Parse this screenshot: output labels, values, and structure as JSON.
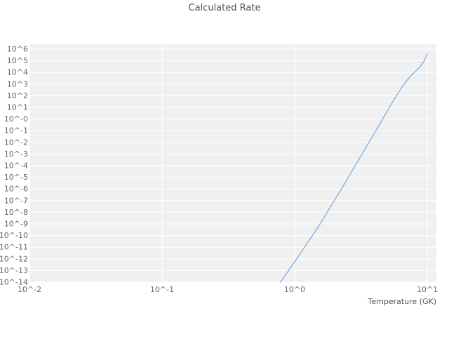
{
  "chart_data": {
    "type": "line",
    "title": "Calculated Rate",
    "xlabel": "Temperature (GK)",
    "ylabel": "",
    "x_scale": "log",
    "y_scale": "log",
    "xlim": [
      0.01,
      10
    ],
    "ylim": [
      1e-14,
      1000000.0
    ],
    "grid": true,
    "legend_position": "none",
    "x_ticks": [
      0.01,
      0.1,
      1,
      10
    ],
    "x_tick_labels": [
      "10^-2",
      "10^-1",
      "10^0",
      "10^1"
    ],
    "y_tick_exponents": [
      6,
      5,
      4,
      3,
      2,
      1,
      0,
      -1,
      -2,
      -3,
      -4,
      -5,
      -6,
      -7,
      -8,
      -9,
      -10,
      -11,
      -12,
      -13,
      -14
    ],
    "y_tick_labels": [
      "10^6",
      "10^5",
      "10^4",
      "10^3",
      "10^2",
      "10^1",
      "10^-0",
      "10^-1",
      "10^-2",
      "10^-3",
      "10^-4",
      "10^-5",
      "10^-6",
      "10^-7",
      "10^-8",
      "10^-9",
      "10^-10",
      "10^-11",
      "10^-12",
      "10^-13",
      "10^-14"
    ],
    "series": [
      {
        "name": "Calculated Rate",
        "color": "#74aadc",
        "x": [
          0.78,
          0.9,
          1.05,
          1.25,
          1.5,
          1.8,
          2.2,
          2.6,
          3.0,
          3.5,
          4.0,
          4.5,
          5.0,
          5.5,
          6.0,
          6.5,
          7.0,
          7.5,
          8.0,
          8.5,
          9.0,
          9.5,
          10.0
        ],
        "y": [
          1e-14,
          1e-13,
          1.26e-12,
          2.5e-11,
          5e-10,
          1.6e-08,
          6.3e-07,
          1.6e-05,
          0.00025,
          0.005,
          0.063,
          0.63,
          5.0,
          31.6,
          158,
          631,
          2000,
          5000,
          10000,
          20000,
          40000,
          100000,
          400000
        ]
      }
    ],
    "style": {
      "plot_background": "#f0f0f0",
      "grid_color": "#ffffff",
      "tick_color": "#666666",
      "title_color": "#4d4d4d",
      "page_background": "#ffffff"
    }
  }
}
